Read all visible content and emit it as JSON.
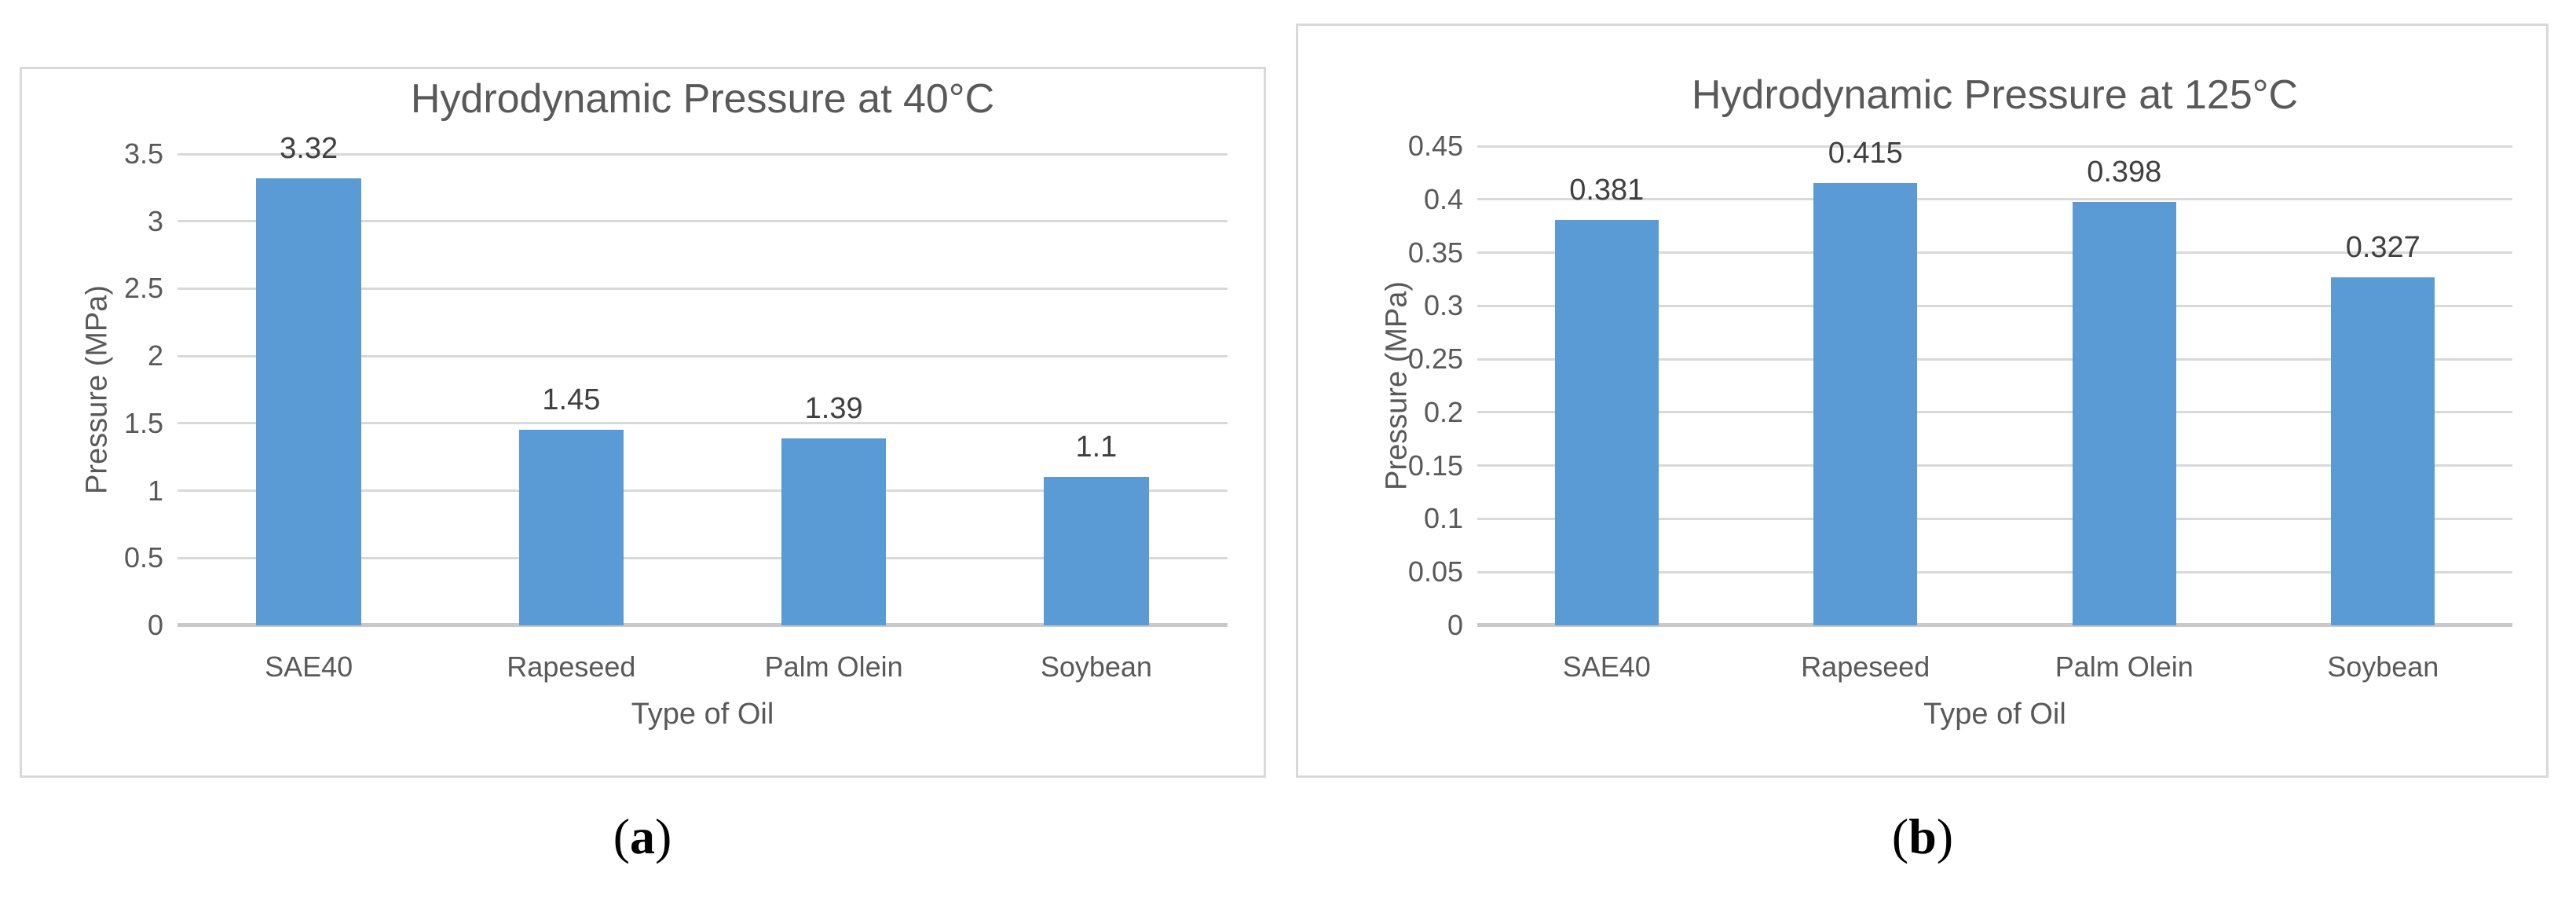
{
  "figure": {
    "captions": {
      "a": {
        "open": "(",
        "letter": "a",
        "close": ")"
      },
      "b": {
        "open": "(",
        "letter": "b",
        "close": ")"
      }
    }
  },
  "colors": {
    "bar_fill": "#5B9BD5",
    "gridline": "#D9D9D9",
    "axis_line": "#C9C9C9",
    "panel_border": "#D9D9D9",
    "text": "#595959",
    "data_label_text": "#3F3F3F",
    "caption_text": "#000000"
  },
  "chart_data": [
    {
      "type": "bar",
      "title": "Hydrodynamic Pressure at 40°C",
      "xlabel": "Type of Oil",
      "ylabel": "Pressure (MPa)",
      "categories": [
        "SAE40",
        "Rapeseed",
        "Palm Olein",
        "Soybean"
      ],
      "values": [
        3.32,
        1.45,
        1.39,
        1.1
      ],
      "value_labels": [
        "3.32",
        "1.45",
        "1.39",
        "1.1"
      ],
      "ylim": [
        0,
        3.5
      ],
      "yticks": [
        0,
        0.5,
        1,
        1.5,
        2,
        2.5,
        3,
        3.5
      ],
      "ytick_labels": [
        "0",
        "0.5",
        "1",
        "1.5",
        "2",
        "2.5",
        "3",
        "3.5"
      ],
      "grid": true,
      "legend": false,
      "bar_color": "#5B9BD5"
    },
    {
      "type": "bar",
      "title": "Hydrodynamic Pressure at 125°C",
      "xlabel": "Type of Oil",
      "ylabel": "Pressure (MPa)",
      "categories": [
        "SAE40",
        "Rapeseed",
        "Palm Olein",
        "Soybean"
      ],
      "values": [
        0.381,
        0.415,
        0.398,
        0.327
      ],
      "value_labels": [
        "0.381",
        "0.415",
        "0.398",
        "0.327"
      ],
      "ylim": [
        0,
        0.45
      ],
      "yticks": [
        0,
        0.05,
        0.1,
        0.15,
        0.2,
        0.25,
        0.3,
        0.35,
        0.4,
        0.45
      ],
      "ytick_labels": [
        "0",
        "0.05",
        "0.1",
        "0.15",
        "0.2",
        "0.25",
        "0.3",
        "0.35",
        "0.4",
        "0.45"
      ],
      "grid": true,
      "legend": false,
      "bar_color": "#5B9BD5"
    }
  ]
}
